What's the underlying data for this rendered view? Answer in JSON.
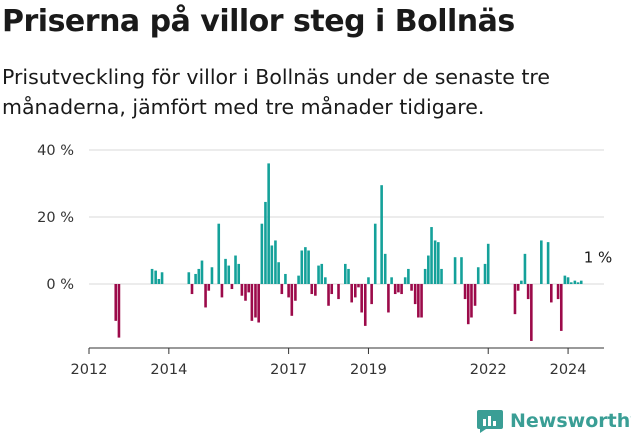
{
  "header": {
    "title": "Priserna på villor steg i Bollnäs",
    "subtitle": "Prisutveckling för villor i Bollnäs under de senaste tre månaderna, jämfört med tre månader tidigare."
  },
  "brand": {
    "name": "Newsworthy",
    "icon": "newsworthy-logo-icon"
  },
  "colors": {
    "positive": "#14a19a",
    "negative": "#9c0a4a",
    "grid": "#d9d9d9",
    "axis": "#333333"
  },
  "chart_data": {
    "type": "bar",
    "title": "Priserna på villor steg i Bollnäs",
    "subtitle": "Prisutveckling för villor i Bollnäs under de senaste tre månaderna, jämfört med tre månader tidigare.",
    "ylabel": "",
    "xlabel": "",
    "ylim": [
      -20,
      40
    ],
    "yticks": [
      0,
      20,
      40
    ],
    "ytick_labels": [
      "0 %",
      "20 %",
      "40 %"
    ],
    "xlim": [
      2012.0,
      2024.9
    ],
    "xticks": [
      2012,
      2014,
      2017,
      2019,
      2022,
      2024
    ],
    "xtick_labels": [
      "2012",
      "2014",
      "2017",
      "2019",
      "2022",
      "2024"
    ],
    "grid": true,
    "annotation": {
      "text": "1 %",
      "x": 2024.35,
      "value": 1
    },
    "x": [
      2012.67,
      2012.75,
      2013.58,
      2013.67,
      2013.75,
      2013.83,
      2014.5,
      2014.58,
      2014.67,
      2014.75,
      2014.83,
      2014.92,
      2015.0,
      2015.08,
      2015.25,
      2015.33,
      2015.42,
      2015.5,
      2015.58,
      2015.67,
      2015.75,
      2015.83,
      2015.92,
      2016.0,
      2016.08,
      2016.17,
      2016.25,
      2016.33,
      2016.42,
      2016.5,
      2016.58,
      2016.67,
      2016.75,
      2016.83,
      2016.92,
      2017.0,
      2017.08,
      2017.17,
      2017.25,
      2017.33,
      2017.42,
      2017.5,
      2017.58,
      2017.67,
      2017.75,
      2017.83,
      2017.92,
      2018.0,
      2018.08,
      2018.25,
      2018.42,
      2018.5,
      2018.58,
      2018.67,
      2018.75,
      2018.83,
      2018.92,
      2019.0,
      2019.08,
      2019.17,
      2019.33,
      2019.42,
      2019.5,
      2019.58,
      2019.67,
      2019.75,
      2019.83,
      2019.92,
      2020.0,
      2020.08,
      2020.17,
      2020.25,
      2020.33,
      2020.42,
      2020.5,
      2020.58,
      2020.67,
      2020.75,
      2020.83,
      2021.17,
      2021.33,
      2021.42,
      2021.5,
      2021.58,
      2021.67,
      2021.75,
      2021.92,
      2022.0,
      2022.67,
      2022.75,
      2022.83,
      2022.92,
      2023.0,
      2023.08,
      2023.33,
      2023.5,
      2023.58,
      2023.75,
      2023.83,
      2023.92,
      2024.0,
      2024.08,
      2024.17,
      2024.25,
      2024.33
    ],
    "values": [
      -11,
      -16,
      4.5,
      4,
      1.5,
      3.5,
      3.5,
      -3,
      3,
      4.5,
      7,
      -7,
      -2,
      5,
      18,
      -4,
      7.5,
      5.5,
      -1.5,
      8.5,
      6,
      -3.5,
      -5,
      -2.5,
      -11,
      -10,
      -11.5,
      18,
      24.5,
      36,
      11.5,
      13,
      6.5,
      -3,
      3,
      -4,
      -9.5,
      -5,
      2.5,
      10,
      11,
      10,
      -3,
      -3.5,
      5.5,
      6,
      2,
      -6.5,
      -3,
      -4.5,
      6,
      4.5,
      -5.5,
      -4,
      -1,
      -8.5,
      -12.5,
      2,
      -6,
      18,
      29.5,
      9,
      -8.5,
      2,
      -3,
      -2.5,
      -3,
      2,
      4.5,
      -2,
      -6,
      -10,
      -10,
      4.5,
      8.5,
      17,
      13,
      12.5,
      4.5,
      8,
      8,
      -4.5,
      -12,
      -10,
      -6.5,
      5,
      6,
      12,
      -9,
      -2,
      1,
      9,
      -4.5,
      -17,
      13,
      12.5,
      -5.5,
      -4.5,
      -14,
      2.5,
      2,
      0.5,
      1,
      0.5,
      1
    ]
  }
}
